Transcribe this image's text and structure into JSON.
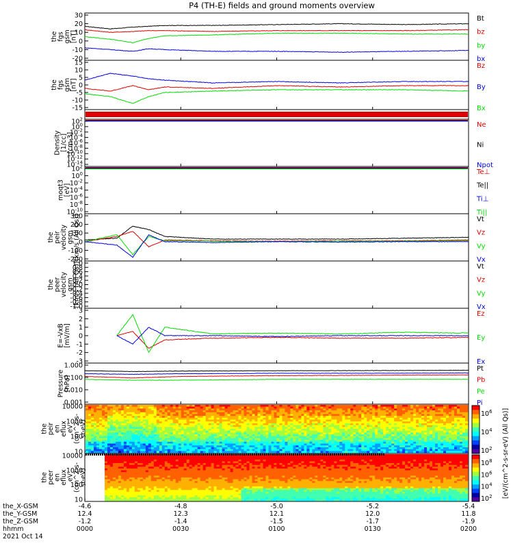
{
  "title": "P4 (TH-E) fields and ground moments overview",
  "colors": {
    "black": "#000000",
    "red": "#dd0000",
    "green": "#00dd00",
    "blue": "#0000dd"
  },
  "chart_data": [
    {
      "type": "line",
      "name": "fgs_gsm",
      "ylabel": [
        "the",
        "fgs",
        "gsm",
        "[nT]"
      ],
      "yticks": [
        "30",
        "20",
        "10",
        "0",
        "-10",
        "-20"
      ],
      "ylim": [
        -20,
        30
      ],
      "series": [
        {
          "name": "Bt",
          "color": "#000000",
          "x": [
            0,
            8,
            15,
            20,
            25,
            40,
            60,
            80,
            100,
            120
          ],
          "y": [
            17,
            14,
            16,
            17,
            18,
            18,
            19,
            20,
            19,
            20
          ]
        },
        {
          "name": "bz",
          "color": "#dd0000",
          "x": [
            0,
            8,
            15,
            20,
            25,
            40,
            60,
            80,
            100,
            120
          ],
          "y": [
            13,
            10,
            11,
            12,
            12,
            11,
            12,
            12,
            12,
            13
          ]
        },
        {
          "name": "by",
          "color": "#00dd00",
          "x": [
            0,
            8,
            15,
            20,
            25,
            40,
            60,
            80,
            100,
            120
          ],
          "y": [
            5,
            2,
            -2,
            3,
            6,
            7,
            9,
            9,
            8,
            8
          ]
        },
        {
          "name": "bx",
          "color": "#0000dd",
          "x": [
            0,
            8,
            15,
            20,
            25,
            40,
            60,
            80,
            100,
            120
          ],
          "y": [
            -8,
            -10,
            -12,
            -9,
            -10,
            -12,
            -12,
            -13,
            -12,
            -11
          ]
        }
      ]
    },
    {
      "type": "line",
      "name": "fgs_gse",
      "ylabel": [
        "the",
        "fgs",
        "gsm",
        "[nT]"
      ],
      "yticks": [
        "15",
        "10",
        "5",
        "0",
        "-5",
        "-10",
        "-15"
      ],
      "ylim": [
        -18,
        15
      ],
      "series": [
        {
          "name": "Bz",
          "color": "#dd0000",
          "x": [
            0,
            8,
            15,
            20,
            25,
            40,
            60,
            80,
            100,
            120
          ],
          "y": [
            -4,
            -6,
            -2,
            -5,
            -3,
            -4,
            -2,
            -3,
            -2,
            -2
          ]
        },
        {
          "name": "By",
          "color": "#0000dd",
          "x": [
            0,
            8,
            15,
            20,
            25,
            40,
            60,
            80,
            100,
            120
          ],
          "y": [
            2,
            7,
            5,
            3,
            2,
            0,
            1,
            0,
            1,
            1
          ]
        },
        {
          "name": "Bx",
          "color": "#00dd00",
          "x": [
            0,
            8,
            15,
            20,
            25,
            40,
            60,
            80,
            100,
            120
          ],
          "y": [
            -8,
            -10,
            -15,
            -10,
            -7,
            -6,
            -5,
            -5,
            -5,
            -6
          ]
        }
      ]
    },
    {
      "type": "line",
      "name": "density",
      "yscale": "log",
      "ylabel": [
        "Density",
        "[1/cc]",
        "[cm-3]"
      ],
      "yticks": [
        "10^2",
        "10^0",
        "10^-2",
        "10^-4",
        "10^-6",
        "10^-8",
        "10^-10",
        "10^-12",
        "10^-14"
      ],
      "series": [
        {
          "name": "Ne",
          "color": "#dd0000"
        },
        {
          "name": "Ni",
          "color": "#000000"
        },
        {
          "name": "Npot",
          "color": "#0000dd"
        }
      ]
    },
    {
      "type": "line",
      "name": "temperature",
      "yscale": "log",
      "ylabel": [
        "moqt3",
        "[eV]"
      ],
      "yticks": [
        "10^2",
        "10^0",
        "10^-2",
        "10^-4",
        "10^-6",
        "10^-8",
        "10^-10"
      ],
      "series": [
        {
          "name": "Te⊥",
          "color": "#dd0000"
        },
        {
          "name": "Te||",
          "color": "#000000"
        },
        {
          "name": "Ti⊥",
          "color": "#0000dd"
        },
        {
          "name": "Ti||",
          "color": "#00dd00"
        }
      ]
    },
    {
      "type": "line",
      "name": "peir_velocity",
      "ylabel": [
        "the",
        "peir",
        "velocity",
        "gsm",
        "[km/s (All Qs)]"
      ],
      "yticks": [
        "300",
        "200",
        "100",
        "0",
        "-100",
        "-200"
      ],
      "ylim": [
        -200,
        300
      ],
      "series": [
        {
          "name": "Vt",
          "color": "#000000",
          "x": [
            0,
            10,
            15,
            20,
            25,
            40,
            60,
            80,
            100,
            120
          ],
          "y": [
            20,
            40,
            180,
            140,
            60,
            30,
            30,
            30,
            40,
            50
          ]
        },
        {
          "name": "Vz",
          "color": "#dd0000",
          "x": [
            0,
            10,
            15,
            20,
            25,
            40,
            60,
            80,
            100,
            120
          ],
          "y": [
            0,
            60,
            120,
            -60,
            20,
            10,
            5,
            10,
            10,
            20
          ]
        },
        {
          "name": "Vy",
          "color": "#00dd00",
          "x": [
            0,
            10,
            15,
            20,
            25,
            40,
            60,
            80,
            100,
            120
          ],
          "y": [
            0,
            80,
            -150,
            60,
            10,
            5,
            0,
            5,
            5,
            10
          ]
        },
        {
          "name": "Vx",
          "color": "#0000dd",
          "x": [
            0,
            10,
            15,
            20,
            25,
            40,
            60,
            80,
            100,
            120
          ],
          "y": [
            0,
            -40,
            -180,
            80,
            0,
            -10,
            0,
            -5,
            0,
            0
          ]
        }
      ]
    },
    {
      "type": "line",
      "name": "peer_velocity",
      "ylabel": [
        "the",
        "peer",
        "velocity",
        "gsm",
        "[km/s (All Qs)]"
      ],
      "yticks": [
        "1.0",
        "0.8",
        "0.6",
        "0.4",
        "0.2",
        "0.0",
        "-0.2",
        "-0.4",
        "-0.6",
        "-0.8",
        "-1.0"
      ],
      "ylim": [
        -1,
        1
      ],
      "series": [
        {
          "name": "Vt",
          "color": "#000000"
        },
        {
          "name": "Vz",
          "color": "#dd0000"
        },
        {
          "name": "Vy",
          "color": "#00dd00"
        },
        {
          "name": "Vx",
          "color": "#0000dd"
        }
      ]
    },
    {
      "type": "line",
      "name": "efield",
      "ylabel": [
        "E=-VxB",
        "[mV/m]"
      ],
      "yticks": [
        "3",
        "2",
        "1",
        "0",
        "-1",
        "-2",
        "-3"
      ],
      "ylim": [
        -3,
        3
      ],
      "series": [
        {
          "name": "Ez",
          "color": "#dd0000",
          "x": [
            10,
            15,
            20,
            25,
            40,
            60,
            80,
            100,
            120
          ],
          "y": [
            0,
            0.5,
            -1.5,
            -0.5,
            -0.3,
            -0.2,
            -0.3,
            -0.3,
            -0.2
          ]
        },
        {
          "name": "Ey",
          "color": "#00dd00",
          "x": [
            10,
            15,
            20,
            25,
            40,
            60,
            80,
            100,
            120
          ],
          "y": [
            0,
            2.5,
            -2,
            1,
            0.2,
            0.3,
            0.2,
            0.4,
            0.3
          ]
        },
        {
          "name": "Ex",
          "color": "#0000dd",
          "x": [
            10,
            15,
            20,
            25,
            40,
            60,
            80,
            100,
            120
          ],
          "y": [
            0,
            -1,
            1,
            0,
            0,
            -0.1,
            0,
            0,
            0
          ]
        }
      ]
    },
    {
      "type": "line",
      "name": "pressure",
      "yscale": "log",
      "ylabel": [
        "Pressure",
        "[nPa]"
      ],
      "yticks": [
        "1.000",
        "0.100",
        "0.010",
        "0.001"
      ],
      "ylim": [
        0.001,
        1
      ],
      "series": [
        {
          "name": "Pt",
          "color": "#000000",
          "x": [
            0,
            15,
            30,
            60,
            90,
            120
          ],
          "y": [
            0.35,
            0.3,
            0.33,
            0.35,
            0.36,
            0.38
          ]
        },
        {
          "name": "Pb",
          "color": "#dd0000",
          "x": [
            0,
            15,
            30,
            60,
            90,
            120
          ],
          "y": [
            0.12,
            0.09,
            0.12,
            0.14,
            0.15,
            0.16
          ]
        },
        {
          "name": "Pe",
          "color": "#00dd00",
          "x": [
            0,
            15,
            30,
            60,
            90,
            120
          ],
          "y": [
            0.07,
            0.06,
            0.06,
            0.07,
            0.07,
            0.07
          ]
        },
        {
          "name": "Pi",
          "color": "#0000dd",
          "x": [
            0,
            15,
            30,
            60,
            90,
            120
          ],
          "y": [
            0.2,
            0.18,
            0.2,
            0.22,
            0.22,
            0.23
          ]
        }
      ]
    },
    {
      "type": "heatmap",
      "name": "peir_energy_flux",
      "ylabel": [
        "the",
        "peir",
        "en",
        "eflux",
        "eV",
        "(cm^2-s-",
        "sr-eV)"
      ],
      "yticks": [
        "10000",
        "1000",
        "100",
        "10"
      ],
      "ylim": [
        5,
        25000
      ]
    },
    {
      "type": "heatmap",
      "name": "peer_energy_flux",
      "ylabel": [
        "the",
        "peer",
        "en",
        "eflux",
        "eV",
        "(cm^2-s-",
        "sr-eV)"
      ],
      "yticks": [
        "10000",
        "1000",
        "100",
        "10"
      ],
      "ylim": [
        5,
        25000
      ]
    }
  ],
  "colorbar": {
    "label": "[eV/(cm^2-s-sr-eV) (All Qs)]",
    "ticks_upper": [
      "10^6",
      "10^4",
      "10^2"
    ],
    "ticks_lower": [
      "10^8",
      "10^6",
      "10^4",
      "10^2"
    ]
  },
  "xaxis": {
    "rows": [
      {
        "label": "the_X-GSM",
        "values": [
          "-4.6",
          "-4.8",
          "-5.0",
          "-5.2",
          "-5.4"
        ]
      },
      {
        "label": "the_Y-GSM",
        "values": [
          "12.4",
          "12.3",
          "12.1",
          "12.0",
          "11.8"
        ]
      },
      {
        "label": "the_Z-GSM",
        "values": [
          "-1.2",
          "-1.4",
          "-1.5",
          "-1.7",
          "-1.9"
        ]
      },
      {
        "label": "hhmm",
        "values": [
          "0000",
          "0030",
          "0100",
          "0130",
          "0200"
        ]
      }
    ],
    "date": "2021 Oct 14"
  }
}
